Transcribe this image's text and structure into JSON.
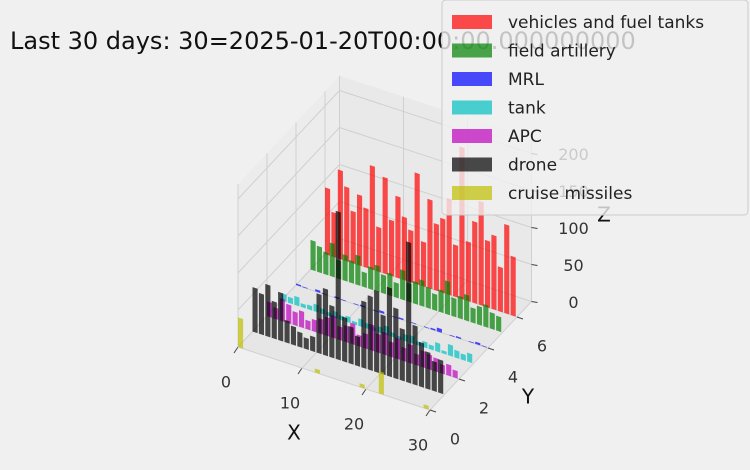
{
  "chart_data": {
    "type": "bar3d",
    "title": "Last 30 days: 30=2025-01-20T00:00:00.000000000",
    "x_label": "X",
    "y_label": "Y",
    "z_label": "Z",
    "x": [
      0,
      1,
      2,
      3,
      4,
      5,
      6,
      7,
      8,
      9,
      10,
      11,
      12,
      13,
      14,
      15,
      16,
      17,
      18,
      19,
      20,
      21,
      22,
      23,
      24,
      25,
      26,
      27,
      28,
      29
    ],
    "series": [
      {
        "name": "vehicles and fuel tanks",
        "color": "#ff0000",
        "y": 6,
        "values": [
          90,
          60,
          120,
          100,
          70,
          95,
          80,
          140,
          60,
          130,
          75,
          110,
          85,
          70,
          150,
          60,
          120,
          90,
          100,
          130,
          70,
          205,
          80,
          110,
          140,
          90,
          100,
          60,
          120,
          80
        ]
      },
      {
        "name": "field artillery",
        "color": "#008000",
        "y": 5,
        "values": [
          40,
          35,
          30,
          45,
          25,
          35,
          30,
          40,
          20,
          30,
          35,
          25,
          30,
          20,
          40,
          25,
          30,
          35,
          28,
          22,
          30,
          45,
          25,
          30,
          35,
          20,
          25,
          30,
          22,
          20
        ]
      },
      {
        "name": "MRL",
        "color": "#0000ff",
        "y": 4,
        "values": [
          2,
          1,
          0,
          3,
          1,
          0,
          2,
          1,
          0,
          1,
          2,
          0,
          1,
          3,
          0,
          1,
          2,
          0,
          1,
          0,
          1,
          2,
          5,
          0,
          1,
          2,
          0,
          1,
          3,
          1
        ]
      },
      {
        "name": "tank",
        "color": "#00bfbf",
        "y": 3,
        "values": [
          10,
          8,
          12,
          5,
          6,
          10,
          7,
          5,
          9,
          6,
          8,
          4,
          10,
          7,
          5,
          8,
          12,
          6,
          4,
          9,
          10,
          5,
          8,
          6,
          12,
          4,
          15,
          10,
          8,
          12
        ]
      },
      {
        "name": "APC",
        "color": "#bf00bf",
        "y": 2,
        "values": [
          20,
          15,
          30,
          25,
          18,
          22,
          12,
          16,
          20,
          25,
          30,
          18,
          22,
          28,
          15,
          20,
          35,
          25,
          30,
          20,
          28,
          18,
          25,
          15,
          22,
          20,
          18,
          12,
          15,
          10
        ]
      },
      {
        "name": "drone",
        "color": "#000000",
        "y": 1,
        "values": [
          60,
          55,
          70,
          50,
          65,
          30,
          25,
          20,
          15,
          20,
          80,
          90,
          70,
          200,
          60,
          50,
          40,
          90,
          100,
          110,
          80,
          120,
          95,
          70,
          190,
          80,
          60,
          50,
          40,
          45
        ]
      },
      {
        "name": "cruise missiles",
        "color": "#bfbf00",
        "y": 0,
        "values": [
          40,
          0,
          0,
          0,
          0,
          0,
          0,
          0,
          0,
          0,
          0,
          0,
          5,
          0,
          0,
          0,
          0,
          0,
          0,
          5,
          0,
          0,
          30,
          0,
          0,
          0,
          0,
          0,
          0,
          5
        ]
      }
    ],
    "xlim": [
      0,
      30
    ],
    "ylim": [
      0,
      7
    ],
    "zlim": [
      0,
      220
    ],
    "xticks": [
      0,
      10,
      20,
      30
    ],
    "yticks": [
      0,
      2,
      4,
      6
    ],
    "zticks": [
      0,
      50,
      100,
      150,
      200
    ],
    "grid": true,
    "legend": "upper right",
    "opacity": 0.7
  }
}
